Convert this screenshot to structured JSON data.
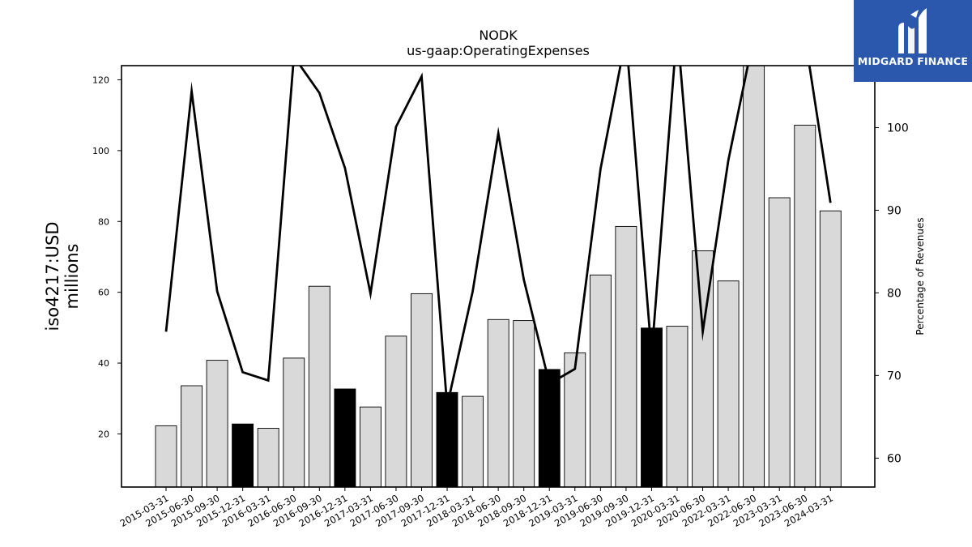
{
  "chart_data": {
    "type": "bar",
    "title": "NODK",
    "subtitle": "us-gaap:OperatingExpenses",
    "ylabel": "iso4217:USD\nmillions",
    "y2label": "Percentage of Revenues",
    "ylim": [
      5,
      124
    ],
    "y2lim": [
      56.5,
      107.5
    ],
    "yticks": [
      20,
      40,
      60,
      80,
      100,
      120
    ],
    "y2ticks": [
      60,
      70,
      80,
      90,
      100
    ],
    "categories": [
      "2015-03-31",
      "2015-06-30",
      "2015-09-30",
      "2015-12-31",
      "2016-03-31",
      "2016-06-30",
      "2016-09-30",
      "2016-12-31",
      "2017-03-31",
      "2017-06-30",
      "2017-09-30",
      "2017-12-31",
      "2018-03-31",
      "2018-06-30",
      "2018-09-30",
      "2018-12-31",
      "2019-03-31",
      "2019-06-30",
      "2019-09-30",
      "2019-12-31",
      "2020-03-31",
      "2020-06-30",
      "2022-03-31",
      "2022-06-30",
      "2023-03-31",
      "2023-06-30",
      "2024-03-31"
    ],
    "series": [
      {
        "type": "bar",
        "values": [
          22.3,
          33.6,
          40.8,
          22.8,
          21.6,
          41.4,
          61.7,
          32.7,
          27.6,
          47.6,
          59.6,
          31.7,
          30.6,
          52.3,
          52.0,
          38.2,
          42.9,
          64.9,
          78.6,
          49.9,
          50.4,
          71.7,
          63.2,
          124,
          86.7,
          107.2,
          83.0
        ],
        "highlight": [
          false,
          false,
          false,
          true,
          false,
          false,
          false,
          true,
          false,
          false,
          false,
          true,
          false,
          false,
          false,
          true,
          false,
          false,
          false,
          true,
          false,
          false,
          false,
          false,
          false,
          false,
          false
        ]
      },
      {
        "type": "line",
        "axis": "right",
        "values": [
          75.3,
          104.4,
          80.2,
          70.4,
          69.4,
          108.6,
          104.2,
          95.1,
          79.9,
          100.1,
          106.2,
          66.3,
          80.2,
          99.3,
          81.6,
          69.0,
          70.8,
          95.0,
          111.0,
          72.5,
          112.0,
          75.3,
          96.0,
          111.0,
          108.6,
          111.0,
          90.9
        ]
      }
    ],
    "grid": false,
    "legend": "none",
    "colors": {
      "bar": "#d9d9d9",
      "bar_highlight": "#000000",
      "line": "#000000"
    }
  },
  "logo": {
    "text": "MIDGARD FINANCE",
    "background": "#2b58ad"
  }
}
